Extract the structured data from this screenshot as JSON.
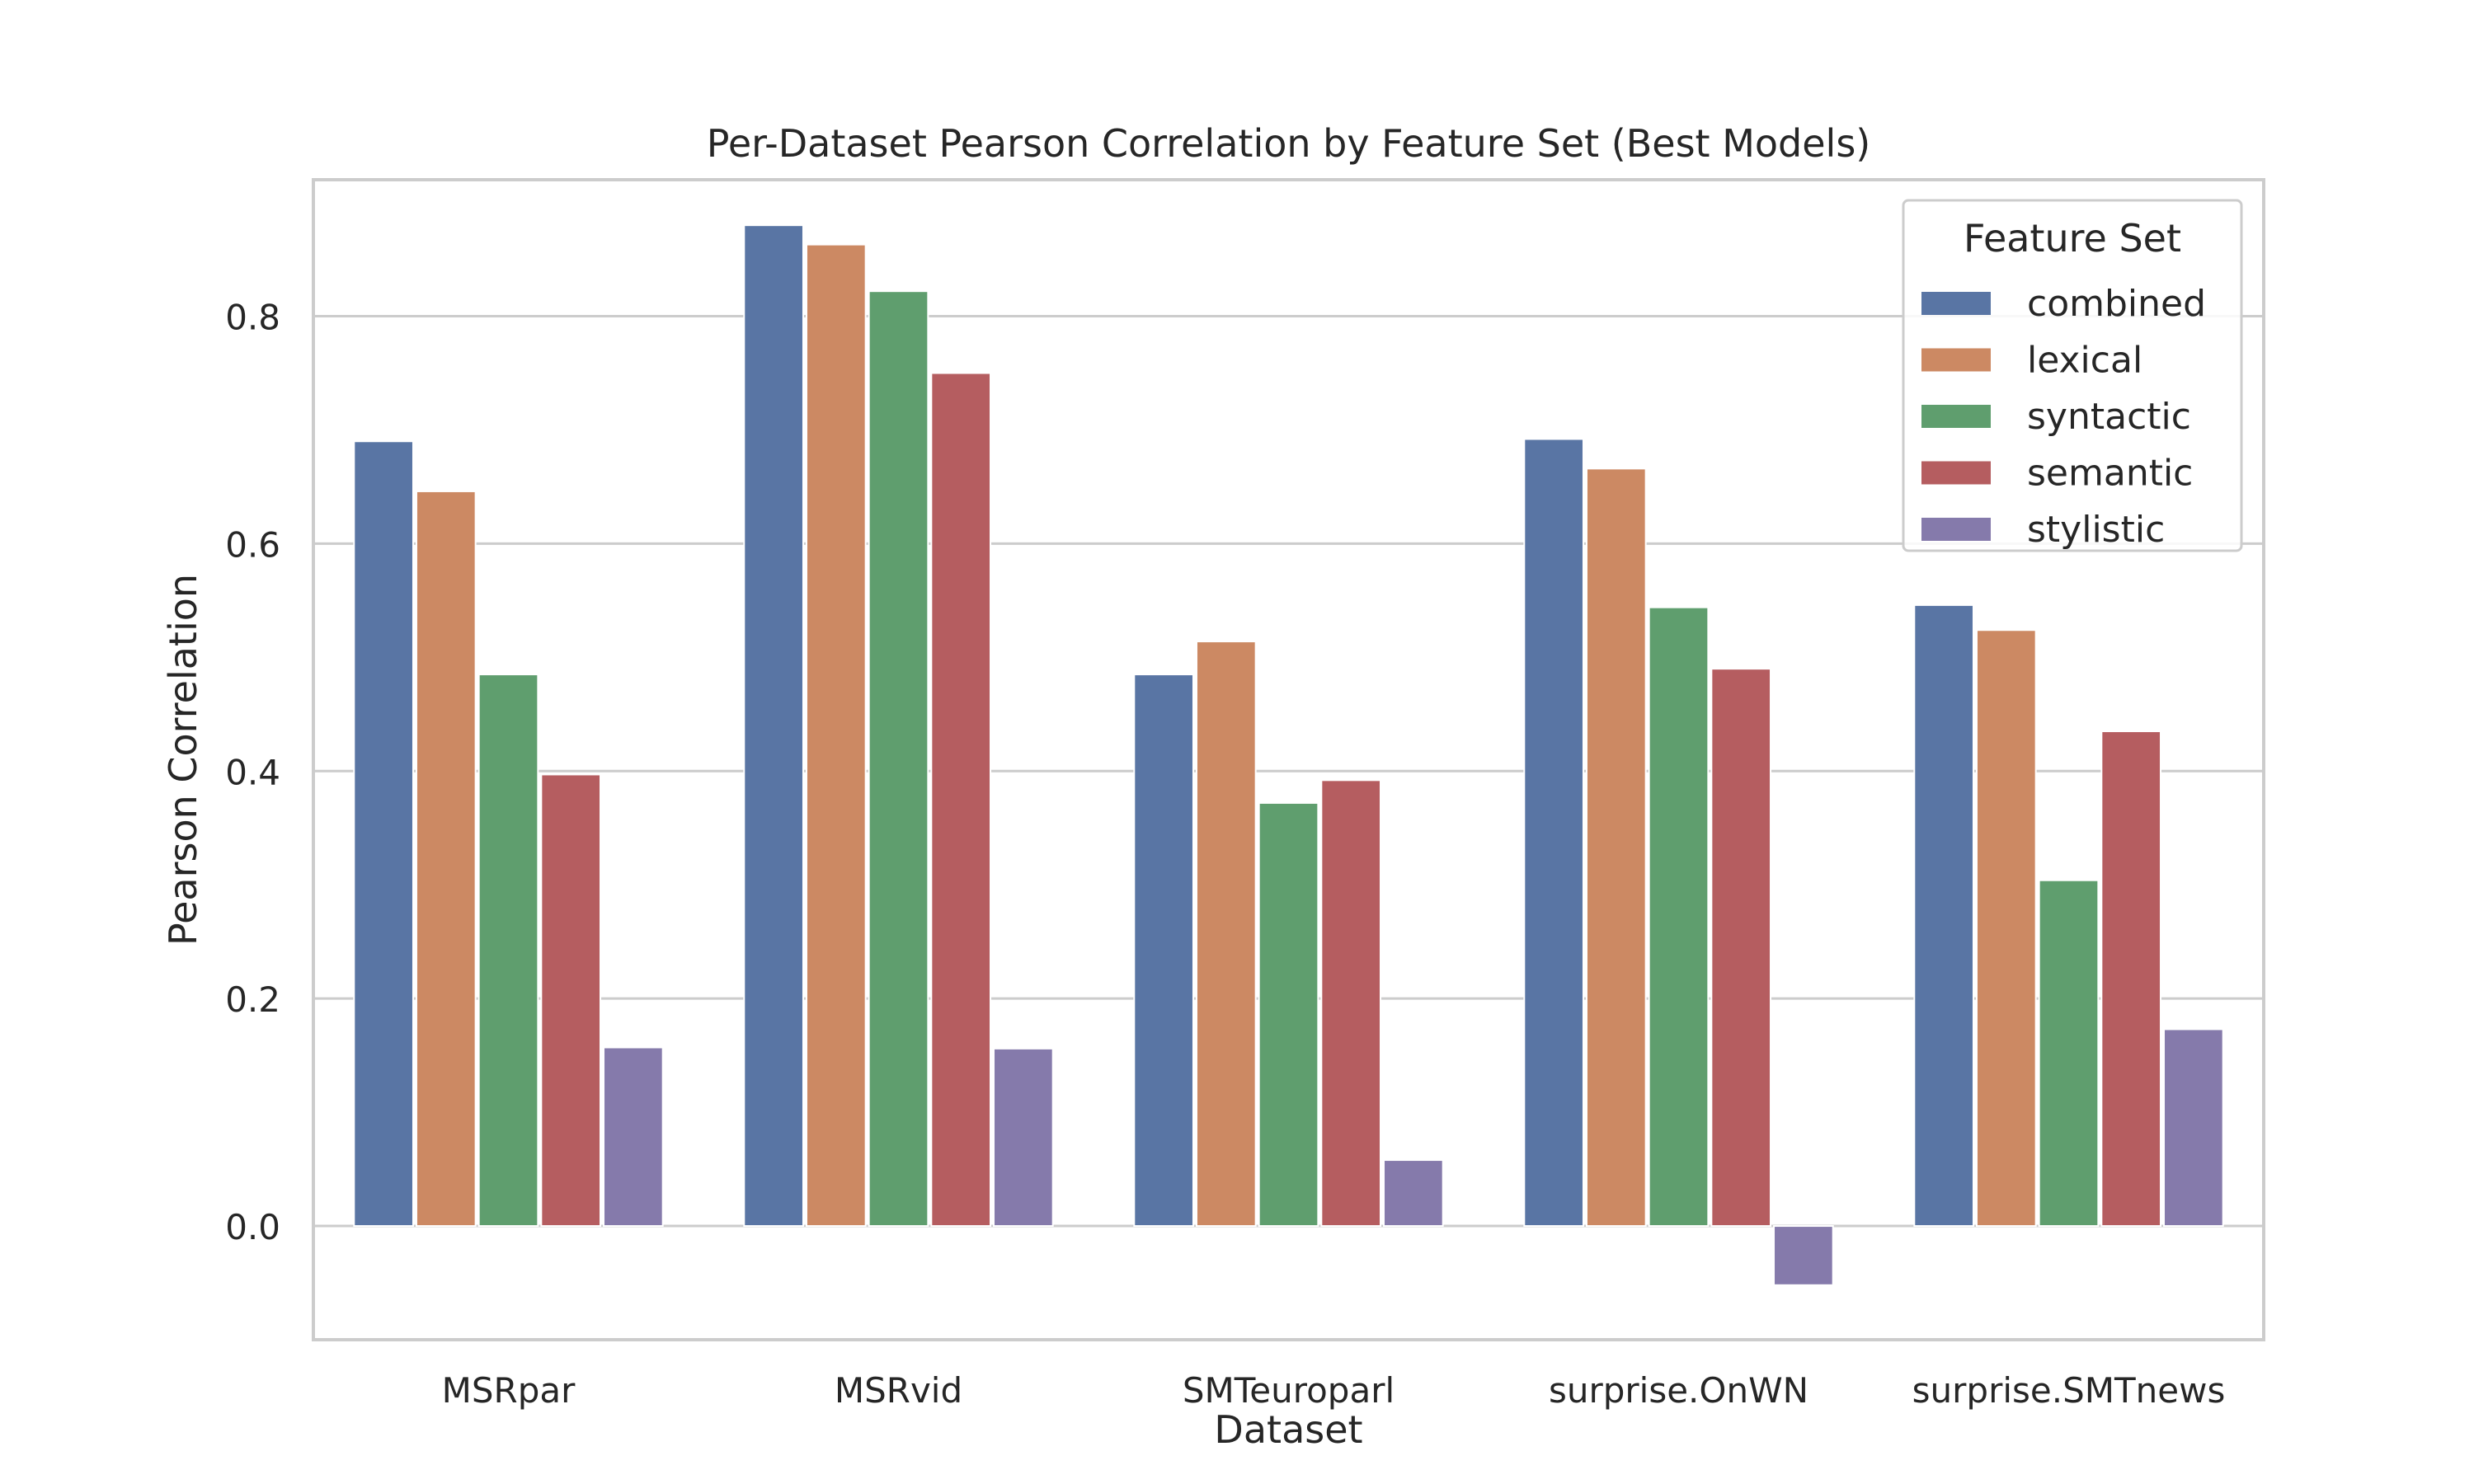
{
  "chart_data": {
    "type": "bar",
    "title": "Per-Dataset Pearson Correlation by Feature Set (Best Models)",
    "xlabel": "Dataset",
    "ylabel": "Pearson Correlation",
    "ylim": [
      -0.1,
      0.92
    ],
    "yticks": [
      0.0,
      0.2,
      0.4,
      0.6,
      0.8
    ],
    "ytick_labels": [
      "0.0",
      "0.2",
      "0.4",
      "0.6",
      "0.8"
    ],
    "grid": true,
    "legend": {
      "title": "Feature Set",
      "placement": "top-right"
    },
    "categories": [
      "MSRpar",
      "MSRvid",
      "SMTeuroparl",
      "surprise.OnWN",
      "surprise.SMTnews"
    ],
    "series": [
      {
        "name": "combined",
        "color": "#5975a4",
        "values": [
          0.69,
          0.88,
          0.485,
          0.692,
          0.546
        ]
      },
      {
        "name": "lexical",
        "color": "#cc8963",
        "values": [
          0.646,
          0.863,
          0.514,
          0.666,
          0.524
        ]
      },
      {
        "name": "syntactic",
        "color": "#5f9e6e",
        "values": [
          0.485,
          0.822,
          0.372,
          0.544,
          0.304
        ]
      },
      {
        "name": "semantic",
        "color": "#b55d60",
        "values": [
          0.397,
          0.75,
          0.392,
          0.49,
          0.435
        ]
      },
      {
        "name": "stylistic",
        "color": "#857aab",
        "values": [
          0.157,
          0.156,
          0.058,
          -0.052,
          0.173
        ]
      }
    ]
  }
}
